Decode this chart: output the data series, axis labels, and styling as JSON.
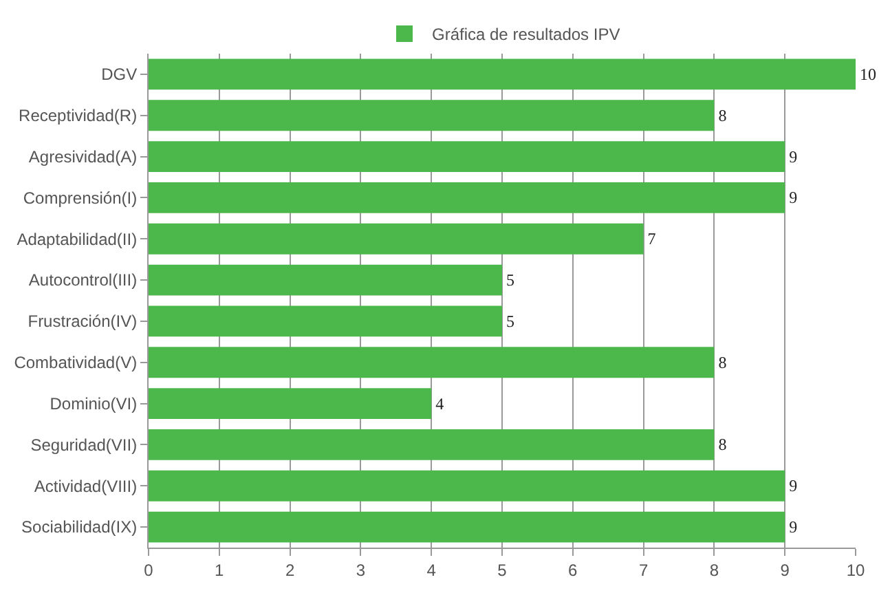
{
  "chart_data": {
    "type": "bar",
    "orientation": "horizontal",
    "categories": [
      "DGV",
      "Receptividad(R)",
      "Agresividad(A)",
      "Comprensión(I)",
      "Adaptabilidad(II)",
      "Autocontrol(III)",
      "Frustración(IV)",
      "Combatividad(V)",
      "Dominio(VI)",
      "Seguridad(VII)",
      "Actividad(VIII)",
      "Sociabilidad(IX)"
    ],
    "series": [
      {
        "name": "Gráfica de resultados IPV",
        "color": "#4cb84c",
        "values": [
          10,
          8,
          9,
          9,
          7,
          5,
          5,
          8,
          4,
          8,
          9,
          9
        ]
      }
    ],
    "xlim": [
      0,
      10
    ],
    "xticks": [
      0,
      1,
      2,
      3,
      4,
      5,
      6,
      7,
      8,
      9,
      10
    ],
    "grid": "x",
    "legend": "top",
    "data_labels": true
  }
}
